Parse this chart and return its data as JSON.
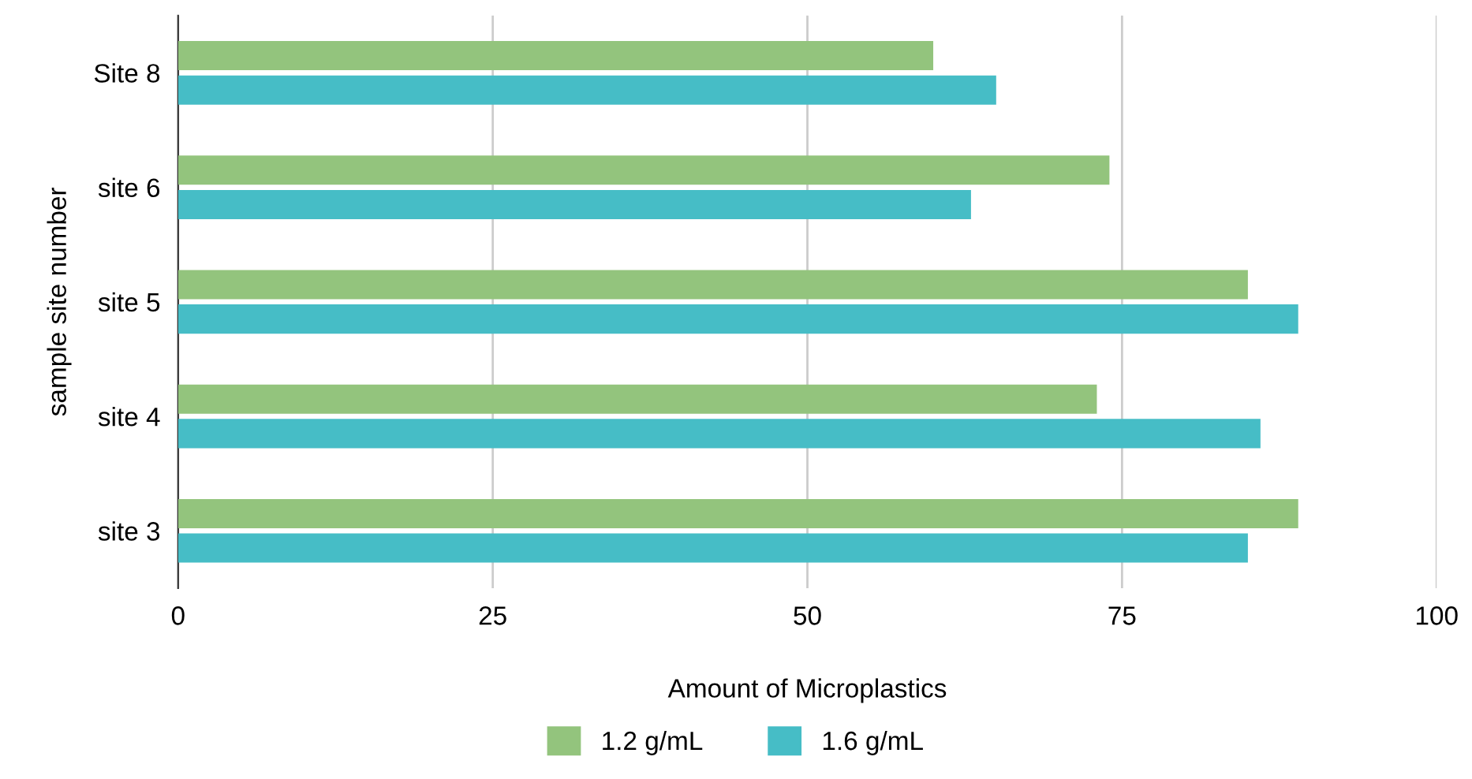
{
  "chart_data": {
    "type": "bar",
    "orientation": "horizontal",
    "xlabel": "Amount of Microplastics",
    "ylabel": "sample site number",
    "categories": [
      "Site 8",
      "site 6",
      "site 5",
      "site 4",
      "site 3"
    ],
    "series": [
      {
        "name": "1.2 g/mL",
        "color": "#93c47d",
        "values": [
          60,
          74,
          85,
          73,
          89
        ]
      },
      {
        "name": "1.6 g/mL",
        "color": "#46bdc6",
        "values": [
          65,
          63,
          89,
          86,
          85
        ]
      }
    ],
    "xlim": [
      0,
      100
    ],
    "xticks": [
      0,
      25,
      50,
      75,
      100
    ],
    "grid": "x",
    "legend": "bottom"
  }
}
